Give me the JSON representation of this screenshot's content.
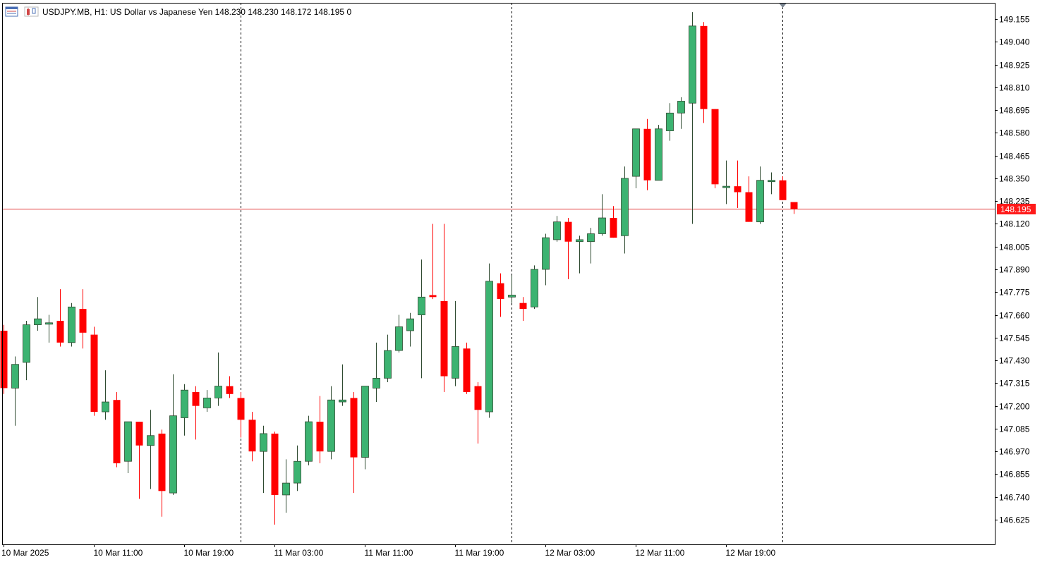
{
  "header": {
    "symbol": "USDJPY.MB",
    "timeframe": "H1:",
    "description": "US Dollar vs Japanese Yen",
    "ohlc": "148.230 148.230 148.172 148.195",
    "volume": "0",
    "icons": [
      "market-watch-icon",
      "chart-type-icon"
    ]
  },
  "colors": {
    "bull": "#3cb371",
    "bear": "#ff0000",
    "candle_outline": "#2e4a30",
    "price_line": "#e23b3b",
    "price_label_bg": "#ff1a1a",
    "grid_separator": "#000000",
    "axis": "#000000",
    "text": "#000000"
  },
  "chart_data": {
    "type": "candlestick",
    "symbol": "USDJPY.MB",
    "timeframe": "H1",
    "ylim": [
      146.55,
      149.2
    ],
    "y_ticks": [
      149.155,
      149.04,
      148.925,
      148.81,
      148.695,
      148.58,
      148.465,
      148.35,
      148.235,
      148.12,
      148.005,
      147.89,
      147.775,
      147.66,
      147.545,
      147.43,
      147.315,
      147.2,
      147.085,
      146.97,
      146.855,
      146.74,
      146.625
    ],
    "y_tick_labels": [
      "149.155",
      "149.040",
      "148.925",
      "148.810",
      "148.695",
      "148.580",
      "148.465",
      "148.350",
      "148.235",
      "148.120",
      "148.005",
      "147.890",
      "147.775",
      "147.660",
      "147.545",
      "147.430",
      "147.315",
      "147.200",
      "147.085",
      "146.970",
      "146.855",
      "146.740",
      "146.625"
    ],
    "x_tick_labels": [
      "10 Mar 2025",
      "10 Mar 11:00",
      "10 Mar 19:00",
      "11 Mar 03:00",
      "11 Mar 11:00",
      "11 Mar 19:00",
      "12 Mar 03:00",
      "12 Mar 11:00",
      "12 Mar 19:00"
    ],
    "x_tick_bar_index": [
      0,
      8,
      16,
      24,
      32,
      40,
      48,
      56,
      64
    ],
    "day_separator_bar_index": [
      21,
      45,
      69
    ],
    "current_price": 148.195,
    "current_price_label": "148.195",
    "ohlc": [
      [
        147.58,
        147.61,
        147.26,
        147.29
      ],
      [
        147.29,
        147.45,
        147.1,
        147.41
      ],
      [
        147.42,
        147.63,
        147.33,
        147.61
      ],
      [
        147.61,
        147.75,
        147.58,
        147.64
      ],
      [
        147.62,
        147.66,
        147.52,
        147.62
      ],
      [
        147.63,
        147.79,
        147.5,
        147.52
      ],
      [
        147.52,
        147.72,
        147.5,
        147.7
      ],
      [
        147.69,
        147.79,
        147.49,
        147.57
      ],
      [
        147.56,
        147.6,
        147.15,
        147.17
      ],
      [
        147.17,
        147.38,
        147.13,
        147.22
      ],
      [
        147.23,
        147.27,
        146.89,
        146.91
      ],
      [
        146.92,
        147.12,
        146.86,
        147.12
      ],
      [
        147.12,
        147.12,
        146.73,
        147.0
      ],
      [
        147.0,
        147.18,
        146.78,
        147.05
      ],
      [
        147.06,
        147.08,
        146.64,
        146.77
      ],
      [
        146.76,
        147.36,
        146.75,
        147.15
      ],
      [
        147.14,
        147.31,
        147.05,
        147.28
      ],
      [
        147.27,
        147.3,
        147.03,
        147.2
      ],
      [
        147.19,
        147.28,
        147.17,
        147.24
      ],
      [
        147.24,
        147.47,
        147.2,
        147.3
      ],
      [
        147.3,
        147.35,
        147.24,
        147.26
      ],
      [
        147.24,
        147.27,
        147.04,
        147.13
      ],
      [
        147.13,
        147.17,
        146.92,
        146.97
      ],
      [
        146.97,
        147.1,
        146.76,
        147.06
      ],
      [
        147.06,
        147.07,
        146.6,
        146.75
      ],
      [
        146.75,
        146.93,
        146.66,
        146.81
      ],
      [
        146.81,
        147.0,
        146.77,
        146.92
      ],
      [
        146.92,
        147.15,
        146.9,
        147.12
      ],
      [
        147.12,
        147.25,
        146.91,
        146.97
      ],
      [
        146.97,
        147.3,
        146.93,
        147.23
      ],
      [
        147.22,
        147.41,
        147.2,
        147.23
      ],
      [
        147.24,
        147.27,
        146.76,
        146.94
      ],
      [
        146.94,
        147.3,
        146.88,
        147.3
      ],
      [
        147.29,
        147.52,
        147.22,
        147.34
      ],
      [
        147.34,
        147.56,
        147.32,
        147.48
      ],
      [
        147.48,
        147.66,
        147.47,
        147.6
      ],
      [
        147.58,
        147.67,
        147.5,
        147.64
      ],
      [
        147.66,
        147.94,
        147.34,
        147.75
      ],
      [
        147.76,
        148.12,
        147.74,
        147.75
      ],
      [
        147.73,
        148.12,
        147.27,
        147.35
      ],
      [
        147.34,
        147.73,
        147.3,
        147.5
      ],
      [
        147.49,
        147.52,
        147.26,
        147.27
      ],
      [
        147.3,
        147.32,
        147.01,
        147.18
      ],
      [
        147.17,
        147.92,
        147.14,
        147.83
      ],
      [
        147.82,
        147.87,
        147.65,
        147.74
      ],
      [
        147.75,
        147.86,
        147.72,
        147.76
      ],
      [
        147.72,
        147.75,
        147.63,
        147.69
      ],
      [
        147.7,
        147.91,
        147.69,
        147.89
      ],
      [
        147.89,
        148.07,
        147.81,
        148.05
      ],
      [
        148.04,
        148.16,
        148.03,
        148.13
      ],
      [
        148.13,
        148.15,
        147.84,
        148.03
      ],
      [
        148.03,
        148.06,
        147.87,
        148.04
      ],
      [
        148.03,
        148.1,
        147.92,
        148.07
      ],
      [
        148.07,
        148.27,
        148.06,
        148.15
      ],
      [
        148.15,
        148.21,
        148.05,
        148.05
      ],
      [
        148.06,
        148.41,
        147.97,
        148.35
      ],
      [
        148.36,
        148.6,
        148.3,
        148.6
      ],
      [
        148.6,
        148.65,
        148.29,
        148.34
      ],
      [
        148.34,
        148.62,
        148.34,
        148.6
      ],
      [
        148.59,
        148.73,
        148.54,
        148.68
      ],
      [
        148.68,
        148.76,
        148.6,
        148.74
      ],
      [
        148.73,
        149.19,
        148.12,
        149.12
      ],
      [
        149.12,
        149.14,
        148.63,
        148.7
      ],
      [
        148.7,
        148.7,
        148.3,
        148.32
      ],
      [
        148.31,
        148.44,
        148.22,
        148.31
      ],
      [
        148.31,
        148.44,
        148.2,
        148.28
      ],
      [
        148.28,
        148.36,
        148.13,
        148.13
      ],
      [
        148.13,
        148.41,
        148.12,
        148.34
      ],
      [
        148.34,
        148.38,
        148.27,
        148.34
      ],
      [
        148.34,
        148.36,
        148.24,
        148.24
      ],
      [
        148.23,
        148.23,
        148.17,
        148.195
      ]
    ]
  }
}
